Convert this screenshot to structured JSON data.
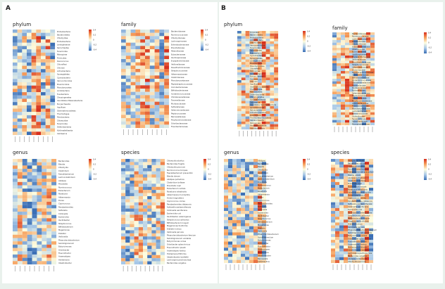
{
  "figure": {
    "background": "#e9f1ec",
    "panel_labels": [
      "A",
      "B"
    ],
    "colormap": [
      "#3b6fb5",
      "#a8c8e8",
      "#fdfde0",
      "#f6a05c",
      "#d7301f"
    ],
    "panels": [
      {
        "group": "A",
        "title": "phylum",
        "rows": 32,
        "cols": 9,
        "seed": 11,
        "row_labels": [
          "Proteobacteria",
          "Bacteroidetes",
          "Chlamydiae",
          "Proteobacteria",
          "Lentisphaerae",
          "Spirochaetes",
          "Tenericutes",
          "Nitrospirae",
          "Firmicutes",
          "Deinococcus",
          "Chloroflexi",
          "Chlorobi",
          "Actinobacteria",
          "Synergistetes",
          "Cyanobacteria",
          "Verrucomicrobia",
          "Elusimicrobia",
          "Planctomycetes",
          "Acidobacteria",
          "Fusobacteria",
          "Chrysiogenetes",
          "Candidatus Melainabacteria",
          "Euryarchaeota",
          "Aquificae",
          "Gemmatimonadetes",
          "Thermotogae",
          "Fibrobacteres",
          "Chlamydiae",
          "Tenericutes",
          "Deferribacteres",
          "Kiritimatiellaeota",
          "Caldiserica"
        ],
        "legend_ticks": [
          "0.4",
          "0.2",
          "0",
          "-0.2",
          "-0.4"
        ]
      },
      {
        "group": "A",
        "title": "family",
        "rows": 30,
        "cols": 10,
        "seed": 23,
        "row_labels": [
          "Bacteroidaceae",
          "Ruminococcaceae",
          "Chlamydiaceae",
          "Lachnospiraceae",
          "Enterobacteriaceae",
          "Prevotellaceae",
          "Rikenellaceae",
          "Eubacteriaceae",
          "Oscillospiraceae",
          "Erysipelotrichaceae",
          "Veillonellaceae",
          "Desulfovibrionaceae",
          "Streptococcaceae",
          "Akkermansiaceae",
          "Clostridiaceae",
          "Planctomycetaceae",
          "Peptostreptococcaceae",
          "Coriobacteriaceae",
          "Bifidobacteriaceae",
          "Acidaminococcaceae",
          "Christensenellaceae",
          "Tannerellaceae",
          "Muribaculaceae",
          "Sutterellaceae",
          "Selenomonadaceae",
          "Peptococcaceae",
          "Barnesiellaceae",
          "Porphyromonadaceae",
          "Odoribacteraceae",
          "Flavobacteriaceae"
        ],
        "legend_ticks": [
          "0.4",
          "0.2",
          "0",
          "-0.2",
          "-0.4"
        ]
      },
      {
        "group": "A",
        "title": "genus",
        "rows": 32,
        "cols": 9,
        "seed": 37,
        "row_labels": [
          "Bacteroides",
          "Blautia",
          "Chlamydia",
          "Clostridium",
          "Faecalibacterium",
          "Lachnoclostridium",
          "Alistipes",
          "Prevotella",
          "Ruminococcus",
          "Eubacterium",
          "Roseburia",
          "Akkermansia",
          "Dorea",
          "Coprococcus",
          "Parabacteroides",
          "Sutterella",
          "Collinsella",
          "Escherichia",
          "Oscillibacter",
          "Streptococcus",
          "Bifidobacterium",
          "Megamonas",
          "Dialister",
          "Veillonella",
          "Phascolarctobacterium",
          "Subdoligranulum",
          "Butyricimonas",
          "Odoribacter",
          "Flavonifractor",
          "Anaerostipes",
          "Holdemania",
          "Intestinibacter"
        ],
        "legend_ticks": [
          "0.4",
          "0.2",
          "0",
          "-0.2",
          "-0.4"
        ]
      },
      {
        "group": "A",
        "title": "species",
        "rows": 34,
        "cols": 10,
        "seed": 53,
        "row_labels": [
          "Chlamydia abortus",
          "Bacteroides fragilis",
          "Chlamydia pecorum",
          "Ruminococcus torques",
          "Faecalibacterium prausnitzii",
          "Blautia obeum",
          "Alistipes putredinis",
          "Clostridium bolteae",
          "Prevotella copri",
          "Eubacterium rectale",
          "Roseburia intestinalis",
          "Akkermansia muciniphila",
          "Dorea longicatena",
          "Coprococcus comes",
          "Parabacteroides distasonis",
          "Sutterella wadsworthensis",
          "Collinsella aerofaciens",
          "Escherichia coli",
          "Oscillibacter valericigenes",
          "Streptococcus salivarius",
          "Bifidobacterium longum",
          "Megamonas funiformis",
          "Dialister invisus",
          "Veillonella parvula",
          "Phascolarctobacterium faecium",
          "Subdoligranulum variabile",
          "Butyricimonas virosa",
          "Odoribacter splanchnicus",
          "Flavonifractor plautii",
          "Anaerostipes hadrus",
          "Holdemania filiformis",
          "Intestinibacter bartlettii",
          "Lachnospira pectinoschiza",
          "Bacteroides vulgatus"
        ],
        "legend_ticks": [
          "0.4",
          "0.2",
          "0",
          "-0.2",
          "-0.4"
        ]
      },
      {
        "group": "B",
        "title": "phylum",
        "rows": 38,
        "cols": 10,
        "seed": 71,
        "row_labels": [
          "Firmicutes",
          "Bacteroidetes",
          "Proteobacteria",
          "Actinobacteria",
          "Chlamydiae",
          "Verrucomicrobia",
          "Tenericutes",
          "Spirochaetes",
          "Fusobacteria",
          "Cyanobacteria",
          "Synergistetes",
          "Lentisphaerae",
          "Elusimicrobia",
          "Planctomycetes",
          "Chloroflexi",
          "Nitrospirae",
          "Acidobacteria",
          "Euryarchaeota",
          "Deinococcus",
          "Chlorobi",
          "Aquificae",
          "Gemmatimonadetes",
          "Thermotogae",
          "Fibrobacteres",
          "Deferribacteres",
          "Chrysiogenetes",
          "Kiritimatiellaeota",
          "Caldiserica",
          "Candidatus Saccharibacteria",
          "Ignavibacteriae",
          "Balneolaeota",
          "Armatimonadetes",
          "Dictyoglomi",
          "Thermodesulfobacteria",
          "Calditrichaeota",
          "Nitrospinae",
          "Rhodothermaeota",
          "Abditibacteriota"
        ],
        "legend_ticks": [
          "0.4",
          "0.2",
          "0",
          "-0.2",
          "-0.4"
        ]
      },
      {
        "group": "B",
        "title": "family",
        "rows": 36,
        "cols": 10,
        "seed": 89,
        "row_labels": [
          "Bacteroidaceae",
          "Ruminococcaceae",
          "Lachnospiraceae",
          "Prevotellaceae",
          "Chlamydiaceae",
          "Enterobacteriaceae",
          "Rikenellaceae",
          "Eubacteriaceae",
          "Oscillospiraceae",
          "Erysipelotrichaceae",
          "Veillonellaceae",
          "Desulfovibrionaceae",
          "Streptococcaceae",
          "Akkermansiaceae",
          "Clostridiaceae",
          "Peptostreptococcaceae",
          "Coriobacteriaceae",
          "Bifidobacteriaceae",
          "Acidaminococcaceae",
          "Christensenellaceae",
          "Tannerellaceae",
          "Muribaculaceae",
          "Sutterellaceae",
          "Selenomonadaceae",
          "Peptococcaceae",
          "Barnesiellaceae",
          "Porphyromonadaceae",
          "Odoribacteraceae",
          "Flavobacteriaceae",
          "Planctomycetaceae",
          "Lactobacillaceae",
          "Enterococcaceae",
          "Victivallaceae",
          "Synergistaceae",
          "Spirochaetaceae",
          "Mycoplasmataceae"
        ],
        "legend_ticks": [
          "0.4",
          "0.2",
          "0",
          "-0.2",
          "-0.4"
        ]
      },
      {
        "group": "B",
        "title": "genus",
        "rows": 34,
        "cols": 10,
        "seed": 97,
        "row_labels": [
          "Alistipes",
          "Bacteroides",
          "Blautia",
          "Chlamydia",
          "Clostridium",
          "Faecalibacterium",
          "Lachnoclostridium",
          "Prevotella",
          "Ruminococcus",
          "Eubacterium",
          "Roseburia",
          "Akkermansia",
          "Dorea",
          "Coprococcus",
          "Parabacteroides",
          "Sutterella",
          "Collinsella",
          "Escherichia",
          "Oscillibacter",
          "Streptococcus",
          "Bifidobacterium",
          "Megamonas",
          "Dialister",
          "Veillonella",
          "Phascolarctobacterium",
          "Subdoligranulum",
          "Butyricimonas",
          "Odoribacter",
          "Flavonifractor",
          "Anaerostipes",
          "Holdemania",
          "Intestinibacter",
          "Barnesiella",
          "Lactobacillus"
        ],
        "legend_ticks": [
          "0.4",
          "0.2",
          "0",
          "-0.2",
          "-0.4"
        ]
      },
      {
        "group": "B",
        "title": "species",
        "rows": 36,
        "cols": 10,
        "seed": 113,
        "row_labels": [
          "Alistipes sp. An66",
          "Bacteroides caccae",
          "Chlamydia abortus",
          "Ruminococcus torques",
          "Faecalibacterium prausnitzii",
          "Blautia obeum",
          "Alistipes putredinis",
          "Clostridium bolteae",
          "Prevotella copri",
          "Eubacterium rectale",
          "Roseburia intestinalis",
          "Akkermansia muciniphila",
          "Dorea longicatena",
          "Coprococcus comes",
          "Parabacteroides distasonis",
          "Sutterella wadsworthensis",
          "Collinsella aerofaciens",
          "Escherichia coli",
          "Oscillibacter valericigenes",
          "Streptococcus salivarius",
          "Bifidobacterium longum",
          "Megamonas funiformis",
          "Dialister invisus",
          "Veillonella parvula",
          "Phascolarctobacterium faecium",
          "Subdoligranulum variabile",
          "Butyricimonas virosa",
          "Odoribacter splanchnicus",
          "Flavonifractor plautii",
          "Anaerostipes hadrus",
          "Holdemania filiformis",
          "Intestinibacter bartlettii",
          "Lachnospira pectinoschiza",
          "Bacteroides vulgatus",
          "Alistipes onderdonkii",
          "Chlamydia pecorum"
        ],
        "legend_ticks": [
          "0.4",
          "0.2",
          "0",
          "-0.2",
          "-0.4"
        ]
      }
    ]
  }
}
